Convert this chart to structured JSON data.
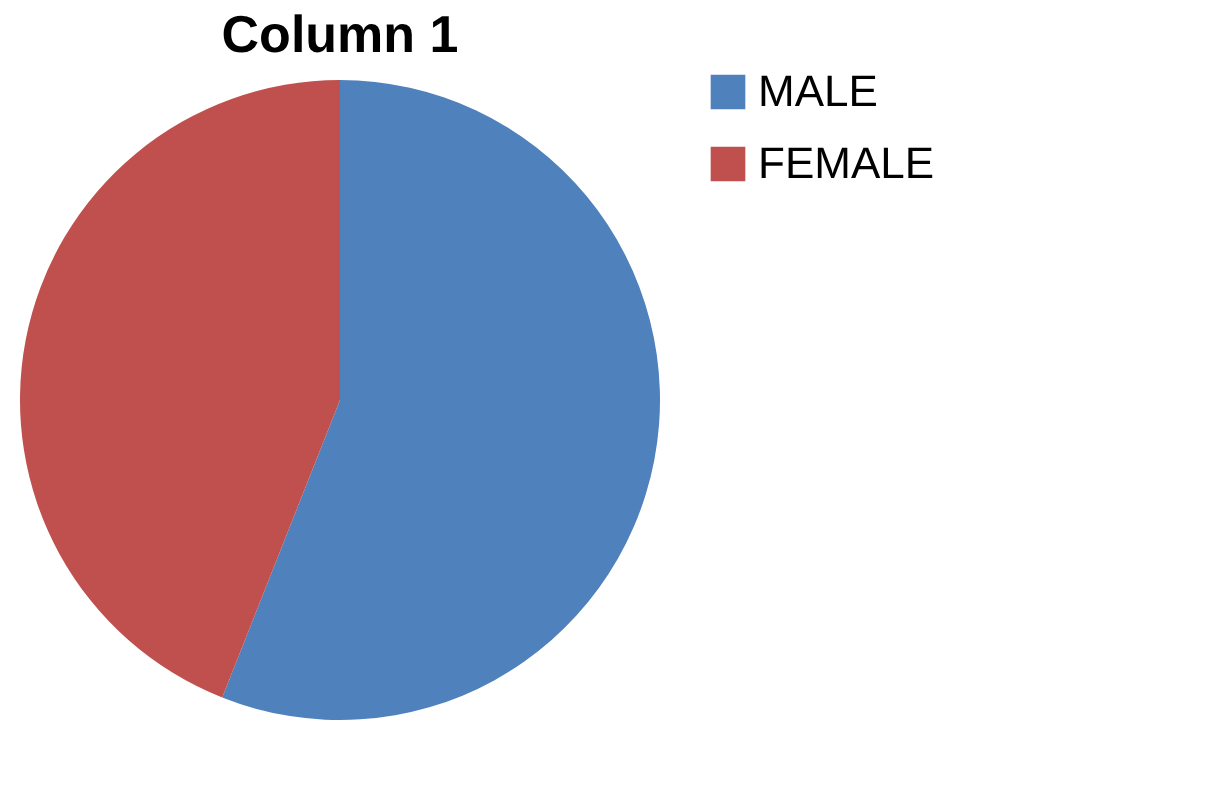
{
  "chart_data": {
    "type": "pie",
    "title": "Column 1",
    "categories": [
      "MALE",
      "FEMALE"
    ],
    "values": [
      56,
      44
    ],
    "colors": [
      "#4f81bd",
      "#c0504d"
    ],
    "legend": "right"
  }
}
